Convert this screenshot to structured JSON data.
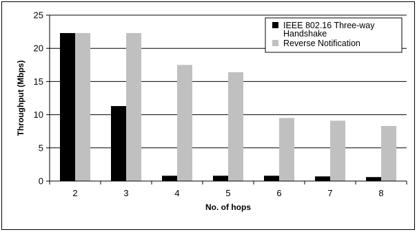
{
  "chart_data": {
    "type": "bar",
    "xlabel": "No. of hops",
    "ylabel": "Throughput (Mbps)",
    "categories": [
      "2",
      "3",
      "4",
      "5",
      "6",
      "7",
      "8"
    ],
    "ylim": [
      0,
      25
    ],
    "yticks": [
      "0",
      "5",
      "10",
      "15",
      "20",
      "25"
    ],
    "grid": true,
    "legend_position": "top-right",
    "series": [
      {
        "name": "IEEE 802.16 Three-way Handshake",
        "legend_lines": [
          "IEEE 802.16 Three-way",
          "Handshake"
        ],
        "color": "#000000",
        "values": [
          22.3,
          11.3,
          0.8,
          0.8,
          0.8,
          0.7,
          0.6
        ]
      },
      {
        "name": "Reverse Notification",
        "legend_lines": [
          "Reverse Notification"
        ],
        "color": "#c0c0c0",
        "values": [
          22.3,
          22.3,
          17.5,
          16.4,
          9.5,
          9.1,
          8.3
        ]
      }
    ]
  }
}
